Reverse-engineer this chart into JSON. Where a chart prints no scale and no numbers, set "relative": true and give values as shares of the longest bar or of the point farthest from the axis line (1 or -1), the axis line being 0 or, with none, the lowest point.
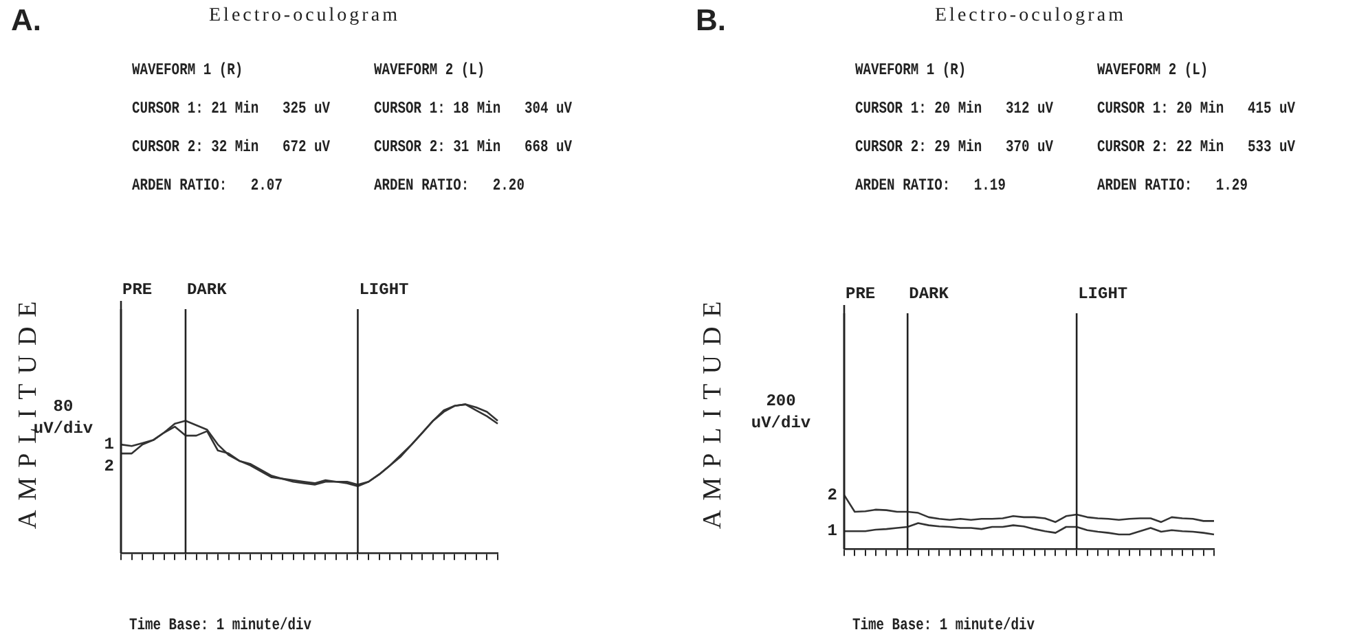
{
  "chart_data": [
    {
      "type": "line",
      "title": "Electro-oculogram",
      "ylabel": "AMPLITUDE",
      "xlabel": "Time Base: 1 minute/div",
      "relative": true,
      "grid": false,
      "legend": false,
      "marker": "none",
      "line_style": "solid",
      "annotations": [
        "A.",
        "WAVEFORM 1 (R)",
        "CURSOR 1: 21 Min   325 uV",
        "CURSOR 2: 32 Min   672 uV",
        "ARDEN RATIO:   2.07",
        "WAVEFORM 2 (L)",
        "CURSOR 1: 18 Min   304 uV",
        "CURSOR 2: 31 Min   668 uV",
        "ARDEN RATIO:   2.20",
        "80 uV/div",
        "PRE",
        "DARK",
        "LIGHT"
      ],
      "categories": [
        null,
        null,
        null,
        null,
        null,
        null,
        null,
        null,
        null,
        null,
        null,
        null,
        null,
        null,
        null,
        null,
        null,
        null,
        null,
        null,
        null,
        null,
        null,
        null,
        null,
        null,
        null,
        null,
        null,
        null,
        null,
        null,
        null,
        null,
        null,
        null
      ],
      "series": [
        {
          "name": "1",
          "color": "#333333",
          "values": [
            0.73,
            0.72,
            0.74,
            0.76,
            0.81,
            0.87,
            0.89,
            0.86,
            0.83,
            0.73,
            0.66,
            0.62,
            0.59,
            0.55,
            0.51,
            0.5,
            0.48,
            0.47,
            0.46,
            0.48,
            0.48,
            0.47,
            0.45,
            0.48,
            0.53,
            0.59,
            0.66,
            0.73,
            0.81,
            0.89,
            0.96,
            0.99,
            1,
            0.98,
            0.95,
            0.89
          ]
        },
        {
          "name": "2",
          "color": "#333333",
          "values": [
            0.67,
            0.67,
            0.73,
            0.76,
            0.81,
            0.85,
            0.79,
            0.79,
            0.82,
            0.69,
            0.67,
            0.62,
            0.6,
            0.56,
            0.52,
            0.5,
            0.49,
            0.48,
            0.47,
            0.49,
            0.48,
            0.48,
            0.46,
            0.48,
            0.53,
            0.59,
            0.65,
            0.73,
            0.81,
            0.89,
            0.95,
            0.99,
            1,
            0.96,
            0.92,
            0.87
          ]
        }
      ]
    },
    {
      "type": "line",
      "title": "Electro-oculogram",
      "ylabel": "AMPLITUDE",
      "xlabel": "Time Base: 1 minute/div",
      "relative": true,
      "grid": false,
      "legend": false,
      "marker": "none",
      "line_style": "solid",
      "annotations": [
        "B.",
        "WAVEFORM 1 (R)",
        "CURSOR 1: 20 Min   312 uV",
        "CURSOR 2: 29 Min   370 uV",
        "ARDEN RATIO:   1.19",
        "WAVEFORM 2 (L)",
        "CURSOR 1: 20 Min   415 uV",
        "CURSOR 2: 22 Min   533 uV",
        "ARDEN RATIO:   1.29",
        "200 uV/div",
        "PRE",
        "DARK",
        "LIGHT"
      ],
      "categories": [
        null,
        null,
        null,
        null,
        null,
        null,
        null,
        null,
        null,
        null,
        null,
        null,
        null,
        null,
        null,
        null,
        null,
        null,
        null,
        null,
        null,
        null,
        null,
        null,
        null,
        null,
        null,
        null,
        null,
        null,
        null,
        null,
        null,
        null,
        null,
        null
      ],
      "series": [
        {
          "name": "2",
          "color": "#333333",
          "values": [
            1,
            0.69,
            0.7,
            0.73,
            0.72,
            0.69,
            0.69,
            0.67,
            0.59,
            0.56,
            0.54,
            0.56,
            0.54,
            0.56,
            0.56,
            0.57,
            0.61,
            0.59,
            0.59,
            0.57,
            0.5,
            0.61,
            0.64,
            0.59,
            0.57,
            0.56,
            0.54,
            0.56,
            0.57,
            0.57,
            0.5,
            0.59,
            0.57,
            0.56,
            0.52,
            0.52
          ]
        },
        {
          "name": "1",
          "color": "#333333",
          "values": [
            0.33,
            0.33,
            0.33,
            0.36,
            0.37,
            0.39,
            0.41,
            0.48,
            0.44,
            0.42,
            0.41,
            0.39,
            0.39,
            0.37,
            0.41,
            0.41,
            0.44,
            0.42,
            0.37,
            0.33,
            0.3,
            0.41,
            0.41,
            0.35,
            0.32,
            0.3,
            0.27,
            0.27,
            0.33,
            0.39,
            0.32,
            0.35,
            0.33,
            0.32,
            0.3,
            0.27
          ]
        }
      ]
    }
  ]
}
